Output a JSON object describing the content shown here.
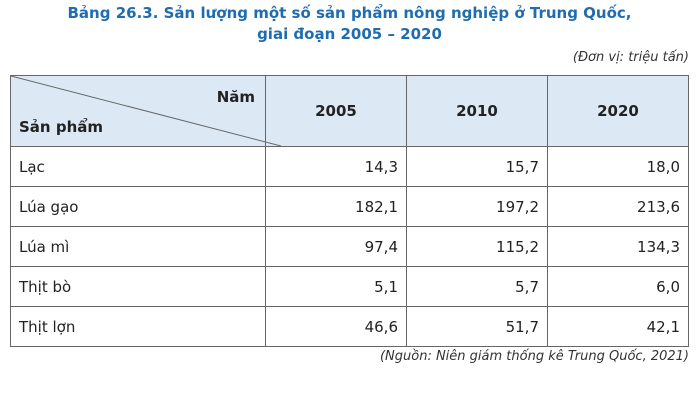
{
  "header": {
    "title_line1": "Bảng 26.3. Sản lượng một số sản phẩm nông nghiệp ở Trung Quốc,",
    "title_line2": "giai đoạn 2005 – 2020",
    "unit": "(Đơn vị: triệu tấn)"
  },
  "table": {
    "corner_top": "Năm",
    "corner_bottom": "Sản phẩm",
    "columns": [
      "2005",
      "2010",
      "2020"
    ],
    "rows": [
      [
        "Lạc",
        "14,3",
        "15,7",
        "18,0"
      ],
      [
        "Lúa gạo",
        "182,1",
        "197,2",
        "213,6"
      ],
      [
        "Lúa mì",
        "97,4",
        "115,2",
        "134,3"
      ],
      [
        "Thịt bò",
        "5,1",
        "5,7",
        "6,0"
      ],
      [
        "Thịt lợn",
        "46,6",
        "51,7",
        "42,1"
      ]
    ]
  },
  "footer": {
    "source": "(Nguồn: Niên giám thống kê Trung Quốc, 2021)"
  }
}
